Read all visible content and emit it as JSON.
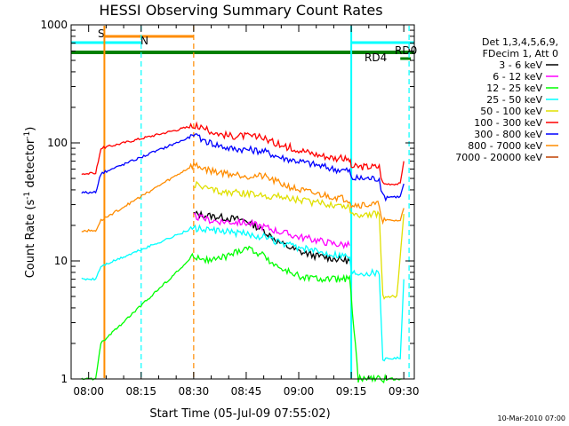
{
  "chart_data": {
    "type": "line",
    "title": "HESSI Observing Summary Count Rates",
    "xlabel": "Start Time (05-Jul-09 07:55:02)",
    "ylabel_main": "Count Rate (s",
    "ylabel_sup1": "-1",
    "ylabel_mid": " detector",
    "ylabel_sup2": "-1",
    "ylabel_end": ")",
    "x_ticks": [
      "08:00",
      "08:15",
      "08:30",
      "08:45",
      "09:00",
      "09:15",
      "09:30"
    ],
    "x_tick_minutes": [
      5,
      20,
      35,
      50,
      65,
      80,
      95
    ],
    "xlim_minutes": [
      0,
      98
    ],
    "y_scale": "log",
    "ylim": [
      1,
      1000
    ],
    "y_ticks": [
      "1",
      "10",
      "100",
      "1000"
    ],
    "y_tick_values": [
      1,
      10,
      100,
      1000
    ],
    "legend_header": [
      "Det 1,3,4,5,6,9,",
      "FDecim 1, Att 0"
    ],
    "legend_placement": "right",
    "series": [
      {
        "name": "3 - 6 keV",
        "color": "#000000",
        "points": [
          [
            35,
            25
          ],
          [
            40,
            24
          ],
          [
            45,
            23
          ],
          [
            50,
            22
          ],
          [
            55,
            18
          ],
          [
            60,
            14
          ],
          [
            65,
            12
          ],
          [
            70,
            11
          ],
          [
            75,
            10.5
          ],
          [
            79.5,
            10
          ]
        ]
      },
      {
        "name": "6 - 12 keV",
        "color": "#ff00ff",
        "points": [
          [
            35,
            24
          ],
          [
            40,
            22
          ],
          [
            45,
            21.5
          ],
          [
            50,
            21
          ],
          [
            55,
            19.5
          ],
          [
            60,
            17.5
          ],
          [
            65,
            16
          ],
          [
            70,
            15
          ],
          [
            75,
            14
          ],
          [
            79.5,
            13.5
          ]
        ]
      },
      {
        "name": "12 - 25 keV",
        "color": "#00ff00",
        "points": [
          [
            3,
            1
          ],
          [
            7,
            1
          ],
          [
            8.5,
            2
          ],
          [
            35,
            11
          ],
          [
            40,
            10
          ],
          [
            45,
            11
          ],
          [
            50,
            13
          ],
          [
            55,
            11
          ],
          [
            60,
            8.5
          ],
          [
            65,
            7.5
          ],
          [
            70,
            7
          ],
          [
            75,
            7
          ],
          [
            79.5,
            7
          ],
          [
            82,
            1
          ],
          [
            94.5,
            1
          ]
        ]
      },
      {
        "name": "25 - 50 keV",
        "color": "#00ffff",
        "points": [
          [
            3,
            7
          ],
          [
            7,
            7
          ],
          [
            8.5,
            9
          ],
          [
            35,
            19
          ],
          [
            40,
            18
          ],
          [
            45,
            17.5
          ],
          [
            50,
            17
          ],
          [
            55,
            16
          ],
          [
            60,
            14
          ],
          [
            65,
            13
          ],
          [
            70,
            12
          ],
          [
            75,
            11.5
          ],
          [
            79.5,
            11
          ],
          [
            80,
            8
          ],
          [
            88,
            8
          ],
          [
            89,
            1.5
          ],
          [
            94,
            1.5
          ],
          [
            95,
            7
          ]
        ]
      },
      {
        "name": "50 - 100 keV",
        "color": "#e0e000",
        "points": [
          [
            35,
            45
          ],
          [
            40,
            40
          ],
          [
            45,
            38
          ],
          [
            50,
            37
          ],
          [
            55,
            36
          ],
          [
            60,
            35
          ],
          [
            65,
            33
          ],
          [
            70,
            31
          ],
          [
            75,
            30
          ],
          [
            79.5,
            29
          ],
          [
            80,
            25
          ],
          [
            88,
            25
          ],
          [
            89,
            5
          ],
          [
            93,
            5
          ],
          [
            95,
            25
          ]
        ]
      },
      {
        "name": "100 - 300 keV",
        "color": "#ff0000",
        "points": [
          [
            3,
            55
          ],
          [
            7,
            55
          ],
          [
            8.5,
            90
          ],
          [
            35,
            140
          ],
          [
            40,
            125
          ],
          [
            45,
            115
          ],
          [
            50,
            115
          ],
          [
            55,
            110
          ],
          [
            60,
            95
          ],
          [
            65,
            88
          ],
          [
            70,
            80
          ],
          [
            75,
            75
          ],
          [
            79.5,
            72
          ],
          [
            80,
            63
          ],
          [
            88,
            63
          ],
          [
            89,
            45
          ],
          [
            94,
            45
          ],
          [
            95,
            70
          ]
        ]
      },
      {
        "name": "300 - 800 keV",
        "color": "#0000ff",
        "points": [
          [
            3,
            38
          ],
          [
            7,
            38
          ],
          [
            8.5,
            55
          ],
          [
            35,
            115
          ],
          [
            40,
            100
          ],
          [
            45,
            90
          ],
          [
            50,
            88
          ],
          [
            55,
            85
          ],
          [
            60,
            75
          ],
          [
            65,
            70
          ],
          [
            70,
            65
          ],
          [
            75,
            60
          ],
          [
            79.5,
            58
          ],
          [
            80,
            50
          ],
          [
            88,
            50
          ],
          [
            89,
            35
          ],
          [
            94,
            35
          ],
          [
            95,
            45
          ]
        ]
      },
      {
        "name": "800 - 7000 keV",
        "color": "#ff8c00",
        "points": [
          [
            3,
            18
          ],
          [
            7,
            18
          ],
          [
            8.5,
            22
          ],
          [
            35,
            65
          ],
          [
            40,
            58
          ],
          [
            45,
            55
          ],
          [
            50,
            53
          ],
          [
            55,
            52
          ],
          [
            60,
            45
          ],
          [
            65,
            40
          ],
          [
            70,
            37
          ],
          [
            75,
            35
          ],
          [
            79.5,
            33
          ],
          [
            80,
            30
          ],
          [
            88,
            30
          ],
          [
            89,
            22
          ],
          [
            94,
            22
          ],
          [
            95,
            28
          ]
        ]
      },
      {
        "name": "7000 - 20000 keV",
        "color": "#c04000",
        "points": []
      }
    ],
    "annotations": [
      {
        "text": "S",
        "color": "#ff8c00"
      },
      {
        "text": "N",
        "color": "#00ffff"
      },
      {
        "text": "RD0",
        "color": "#008000"
      },
      {
        "text": "RD4",
        "color": "#008000"
      }
    ],
    "flag_bars": {
      "saa": {
        "color": "#ff8c00",
        "range": [
          9.5,
          35
        ]
      },
      "night": {
        "color": "#00ffff",
        "ranges": [
          [
            0,
            20
          ],
          [
            80,
            98
          ]
        ]
      },
      "rd0": {
        "color": "#008000",
        "range": [
          0,
          98
        ]
      },
      "rd4": {
        "color": "#008000",
        "range": [
          94,
          97
        ]
      }
    },
    "vertical_markers": [
      {
        "minute": 9.5,
        "color": "#ff8c00",
        "style": "solid"
      },
      {
        "minute": 20,
        "color": "#00ffff",
        "style": "dashed"
      },
      {
        "minute": 35,
        "color": "#ff8c00",
        "style": "dashed"
      },
      {
        "minute": 80,
        "color": "#00ffff",
        "style": "solid"
      },
      {
        "minute": 96.5,
        "color": "#00ffff",
        "style": "dashed"
      }
    ]
  },
  "footer_stamp": "10-Mar-2010 07:00"
}
